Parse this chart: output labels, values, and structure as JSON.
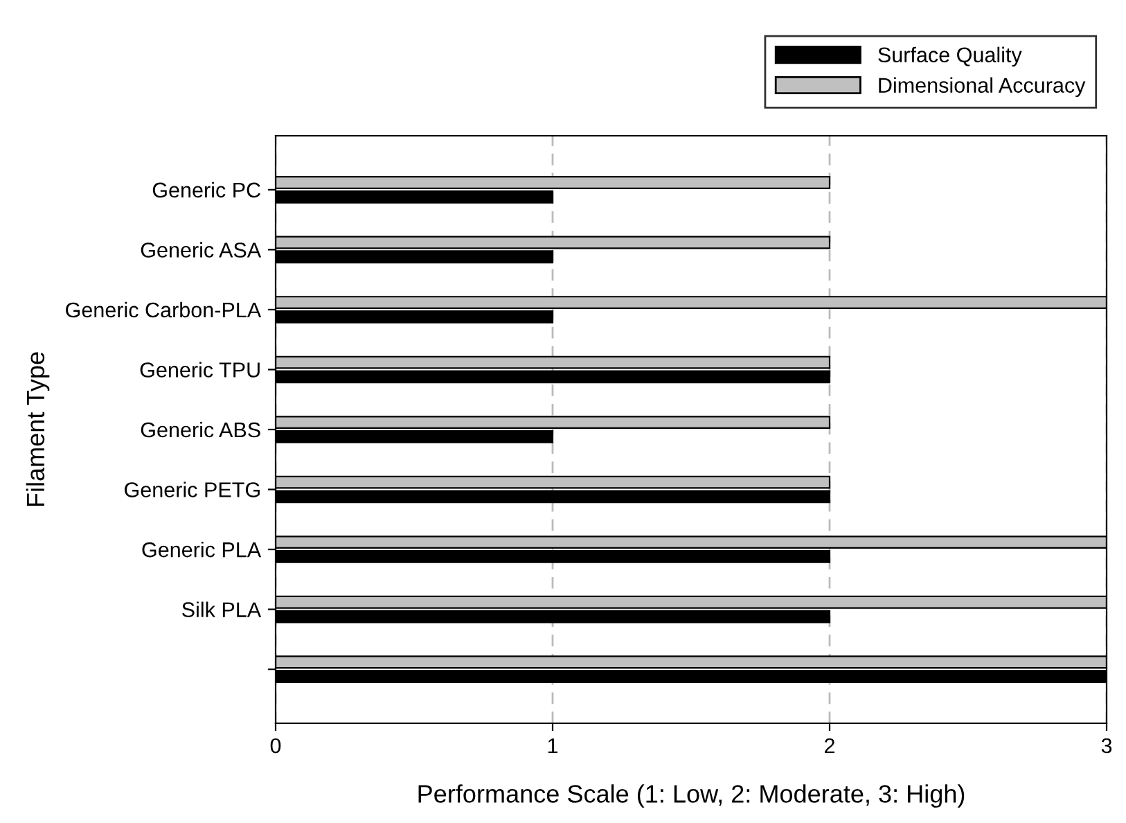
{
  "chart_data": {
    "type": "bar",
    "orientation": "horizontal",
    "xlabel": "Performance Scale (1: Low, 2: Moderate, 3: High)",
    "ylabel": "Filament Type",
    "categories": [
      "Generic PC",
      "Generic ASA",
      "Generic Carbon-PLA",
      "Generic TPU",
      "Generic ABS",
      "Generic PETG",
      "Generic PLA",
      "Silk PLA",
      null
    ],
    "series": [
      {
        "name": "Dimensional Accuracy",
        "color": "#c0c0c0",
        "values": [
          2,
          2,
          3,
          2,
          2,
          2,
          3,
          3,
          3
        ]
      },
      {
        "name": "Surface Quality",
        "color": "#000000",
        "values": [
          1,
          1,
          1,
          2,
          1,
          2,
          2,
          2,
          3
        ]
      }
    ],
    "xlim": [
      0,
      3
    ],
    "xticks": [
      0,
      1,
      2,
      3
    ],
    "grid": "x",
    "legend": "top right"
  }
}
